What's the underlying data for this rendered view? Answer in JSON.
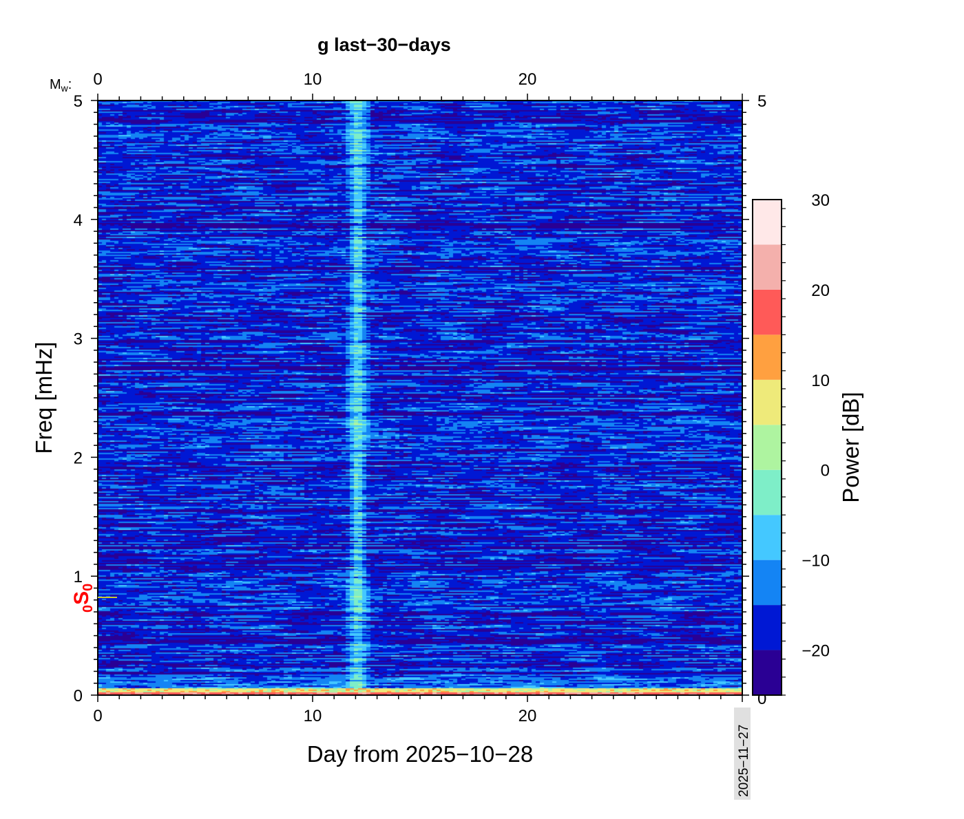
{
  "chart_data": {
    "type": "heatmap",
    "title": "g last−30−days",
    "xlabel": "Day from 2025−10−28",
    "ylabel": "Freq [mHz]",
    "colorbar_label": "Power [dB]",
    "xlim": [
      0,
      30
    ],
    "ylim": [
      0,
      5
    ],
    "x_ticks": [
      "0",
      "10",
      "20"
    ],
    "y_ticks": [
      "0",
      "1",
      "2",
      "3",
      "4",
      "5"
    ],
    "right_y_ticks": [
      "5",
      "0"
    ],
    "top_axis_label": "M",
    "top_axis_label_sub": "w",
    "top_axis_suffix": ":",
    "top_x_ticks": [
      "0",
      "10",
      "20"
    ],
    "end_date_label": "2025−11−27",
    "mode_marker": {
      "label_pre": "0",
      "label": "S",
      "label_sub": "0",
      "freq_mhz": 0.82,
      "color": "#ff0000",
      "line_color": "#c8c832"
    },
    "colorbar": {
      "range": [
        -25,
        30
      ],
      "ticks": [
        "30",
        "20",
        "10",
        "0",
        "−10",
        "−20"
      ],
      "tick_values": [
        30,
        20,
        10,
        0,
        -10,
        -20
      ],
      "levels": [
        -25,
        -20,
        -15,
        -10,
        -5,
        0,
        5,
        10,
        15,
        20,
        25,
        30
      ],
      "colors": [
        "#2a0094",
        "#0018d4",
        "#1484f4",
        "#44c8ff",
        "#7eeec8",
        "#aef4a0",
        "#eeea7a",
        "#ffa040",
        "#ff5a58",
        "#f4b0ac",
        "#ffe8e8"
      ]
    },
    "features": {
      "background_db": [
        -25,
        -10
      ],
      "vertical_band_day": 12,
      "vertical_band_db": [
        -10,
        -5
      ],
      "low_freq_band_mhz": [
        0,
        0.05
      ],
      "low_freq_band_db": [
        0,
        20
      ]
    }
  }
}
